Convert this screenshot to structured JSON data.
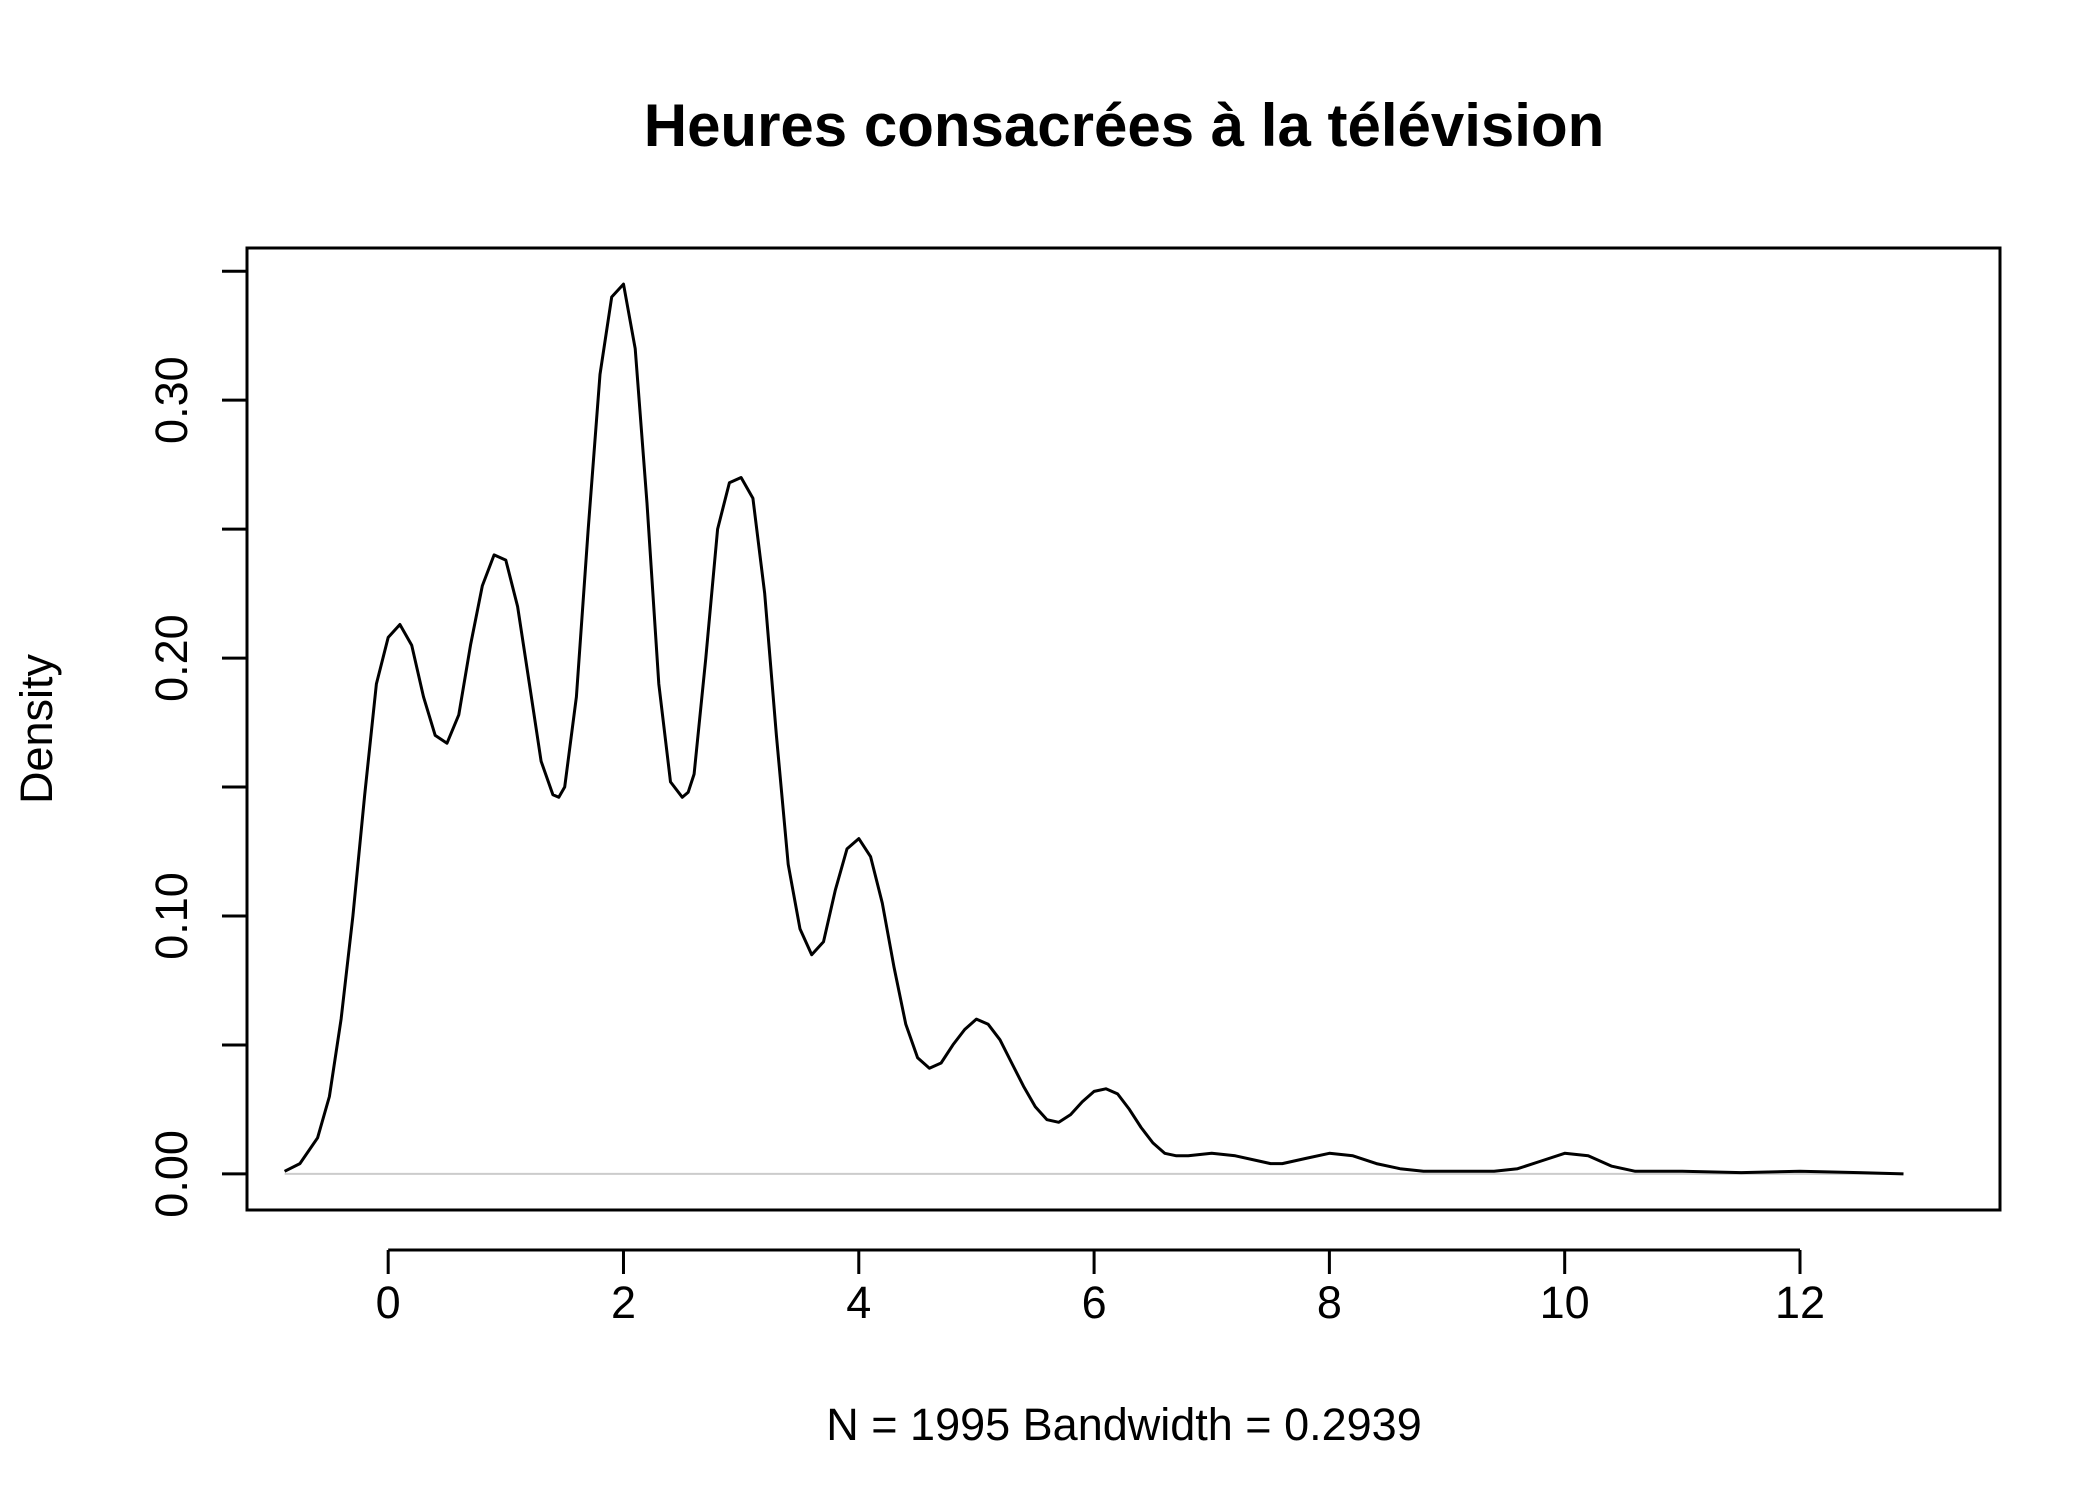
{
  "chart_data": {
    "type": "line",
    "title": "Heures consacrées à la télévision",
    "xlabel": "N = 1995   Bandwidth = 0.2939",
    "ylabel": "Density",
    "xlim": [
      -1.2,
      13.7
    ],
    "ylim": [
      -0.014,
      0.359
    ],
    "x_ticks": [
      0,
      2,
      4,
      6,
      8,
      10,
      12
    ],
    "x_tick_labels": [
      "0",
      "2",
      "4",
      "6",
      "8",
      "10",
      "12"
    ],
    "y_ticks": [
      0.0,
      0.05,
      0.1,
      0.15,
      0.2,
      0.25,
      0.3,
      0.35
    ],
    "y_tick_labels": [
      "0.00",
      "",
      "0.10",
      "",
      "0.20",
      "",
      "0.30",
      ""
    ],
    "baseline": 0,
    "grid": false,
    "series": [
      {
        "x": [
          -0.88,
          -0.75,
          -0.6,
          -0.5,
          -0.4,
          -0.3,
          -0.2,
          -0.1,
          0.0,
          0.1,
          0.2,
          0.3,
          0.4,
          0.5,
          0.6,
          0.7,
          0.8,
          0.9,
          1.0,
          1.1,
          1.2,
          1.3,
          1.4,
          1.45,
          1.5,
          1.6,
          1.7,
          1.8,
          1.9,
          2.0,
          2.1,
          2.2,
          2.3,
          2.4,
          2.5,
          2.55,
          2.6,
          2.7,
          2.8,
          2.9,
          3.0,
          3.1,
          3.2,
          3.3,
          3.4,
          3.5,
          3.6,
          3.7,
          3.8,
          3.9,
          4.0,
          4.1,
          4.2,
          4.3,
          4.4,
          4.5,
          4.6,
          4.7,
          4.8,
          4.9,
          5.0,
          5.1,
          5.2,
          5.3,
          5.4,
          5.5,
          5.6,
          5.7,
          5.8,
          5.9,
          6.0,
          6.1,
          6.2,
          6.3,
          6.4,
          6.5,
          6.6,
          6.7,
          6.8,
          7.0,
          7.2,
          7.4,
          7.5,
          7.6,
          7.8,
          8.0,
          8.2,
          8.4,
          8.6,
          8.8,
          9.0,
          9.2,
          9.4,
          9.6,
          9.8,
          10.0,
          10.2,
          10.4,
          10.6,
          10.8,
          11.0,
          11.5,
          12.0,
          12.5,
          12.88
        ],
        "y": [
          0.001,
          0.004,
          0.014,
          0.03,
          0.06,
          0.1,
          0.147,
          0.19,
          0.208,
          0.213,
          0.205,
          0.185,
          0.17,
          0.167,
          0.178,
          0.205,
          0.228,
          0.24,
          0.238,
          0.22,
          0.19,
          0.16,
          0.147,
          0.146,
          0.15,
          0.185,
          0.25,
          0.31,
          0.34,
          0.345,
          0.32,
          0.26,
          0.19,
          0.152,
          0.146,
          0.148,
          0.155,
          0.2,
          0.25,
          0.268,
          0.27,
          0.262,
          0.225,
          0.17,
          0.12,
          0.095,
          0.085,
          0.09,
          0.11,
          0.126,
          0.13,
          0.123,
          0.105,
          0.08,
          0.058,
          0.045,
          0.041,
          0.043,
          0.05,
          0.056,
          0.06,
          0.058,
          0.052,
          0.043,
          0.034,
          0.026,
          0.021,
          0.02,
          0.023,
          0.028,
          0.032,
          0.033,
          0.031,
          0.025,
          0.018,
          0.012,
          0.008,
          0.007,
          0.007,
          0.008,
          0.007,
          0.005,
          0.004,
          0.004,
          0.006,
          0.008,
          0.007,
          0.004,
          0.002,
          0.001,
          0.001,
          0.001,
          0.001,
          0.002,
          0.005,
          0.008,
          0.007,
          0.003,
          0.001,
          0.001,
          0.001,
          0.0005,
          0.001,
          0.0005,
          0.0
        ]
      }
    ]
  }
}
